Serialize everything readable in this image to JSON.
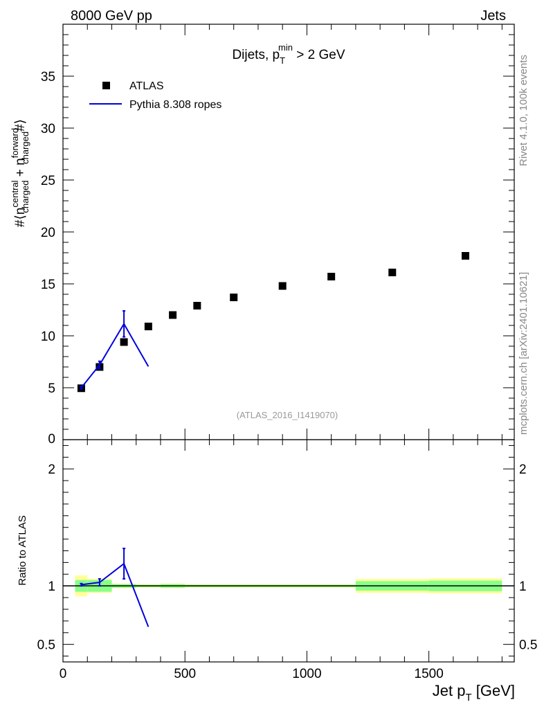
{
  "chart_data": {
    "type": "scatter",
    "header": {
      "left": "8000 GeV pp",
      "right": "Jets"
    },
    "title": {
      "main": "Dijets, p",
      "sub": "T",
      "sup": "min",
      "rest": " > 2 GeV"
    },
    "watermark": "(ATLAS_2016_I1419070)",
    "side_labels": {
      "rivet": "Rivet 4.1.0,  100k events",
      "mcplots": "mcplots.cern.ch [arXiv:2401.10621]"
    },
    "xlabel": {
      "main": "Jet p",
      "sub": "T",
      "rest": " [GeV]"
    },
    "ylabel_main": {
      "hash": "#",
      "bracket_open": "⟨",
      "n": "n",
      "sup1": "central",
      "sub1": "charged",
      "plus": " + n",
      "sup2": "forward",
      "sub2": "charged",
      "end": "#⟩"
    },
    "ylabel_ratio": "Ratio to ATLAS",
    "xlim": [
      0,
      1850
    ],
    "ylim_main": [
      0,
      40
    ],
    "ylim_ratio": [
      0.35,
      2.25
    ],
    "x_ticks": [
      0,
      500,
      1000,
      1500
    ],
    "x_tick_labels": [
      "0",
      "500",
      "1000",
      "1500"
    ],
    "y_ticks_main": [
      5,
      10,
      15,
      20,
      25,
      30,
      35
    ],
    "y_tick_labels_main": [
      "5",
      "10",
      "15",
      "20",
      "25",
      "30",
      "35"
    ],
    "y_ticks_ratio": [
      0.5,
      1,
      2
    ],
    "y_tick_labels_ratio": [
      "0.5",
      "1",
      "2"
    ],
    "legend": [
      {
        "label": "ATLAS",
        "marker": "square"
      },
      {
        "label": "Pythia 8.308 ropes",
        "marker": "line"
      }
    ],
    "colors": {
      "data": "#000000",
      "mc": "#0000dd",
      "band_inner": "#88ff88",
      "band_outer": "#ffff99",
      "watermark": "#999999",
      "side": "#888888"
    },
    "series": [
      {
        "name": "ATLAS",
        "x": [
          75,
          150,
          250,
          350,
          450,
          550,
          700,
          900,
          1100,
          1350,
          1650
        ],
        "y": [
          4.95,
          7.0,
          9.4,
          10.9,
          12.0,
          12.9,
          13.7,
          14.8,
          15.7,
          16.1,
          17.7
        ],
        "bins": [
          [
            50,
            100
          ],
          [
            100,
            200
          ],
          [
            200,
            300
          ],
          [
            300,
            400
          ],
          [
            400,
            500
          ],
          [
            500,
            600
          ],
          [
            600,
            800
          ],
          [
            800,
            1000
          ],
          [
            1000,
            1200
          ],
          [
            1200,
            1500
          ],
          [
            1500,
            1800
          ]
        ],
        "rel_err_inner": [
          0.05,
          0.05,
          0.015,
          0.01,
          0.015,
          0.01,
          0.01,
          0.01,
          0.01,
          0.04,
          0.045
        ],
        "rel_err_outer": [
          0.09,
          0.06,
          0.02,
          0.015,
          0.02,
          0.015,
          0.015,
          0.015,
          0.015,
          0.06,
          0.065
        ]
      },
      {
        "name": "Pythia 8.308 ropes",
        "x": [
          75,
          150,
          250,
          350
        ],
        "y": [
          5.0,
          7.2,
          11.15,
          7.05
        ],
        "yerr": [
          0.12,
          0.35,
          1.25,
          0.0
        ],
        "ratio": [
          1.01,
          1.03,
          1.19,
          0.65
        ],
        "ratio_err": [
          0.01,
          0.03,
          0.13,
          0.0
        ]
      }
    ]
  }
}
